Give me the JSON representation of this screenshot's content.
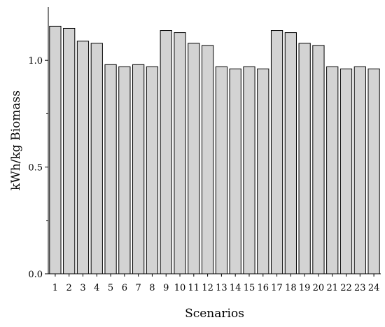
{
  "chart_data": {
    "type": "bar",
    "title": "",
    "xlabel": "Scenarios",
    "ylabel": "kWh/kg Biomass",
    "categories": [
      "1",
      "2",
      "3",
      "4",
      "5",
      "6",
      "7",
      "8",
      "9",
      "10",
      "11",
      "12",
      "13",
      "14",
      "15",
      "16",
      "17",
      "18",
      "19",
      "20",
      "21",
      "22",
      "23",
      "24"
    ],
    "values": [
      1.16,
      1.15,
      1.09,
      1.08,
      0.98,
      0.97,
      0.98,
      0.97,
      1.14,
      1.13,
      1.08,
      1.07,
      0.97,
      0.96,
      0.97,
      0.96,
      1.14,
      1.13,
      1.08,
      1.07,
      0.97,
      0.96,
      0.97,
      0.96
    ],
    "ylim": [
      0,
      1.25
    ],
    "yticks": [
      "0.0",
      "0.5",
      "1.0"
    ],
    "grid": false,
    "legend": "none",
    "colors": {
      "bar_fill": "#d3d3d3",
      "bar_stroke": "#000000",
      "axis": "#000000"
    }
  }
}
